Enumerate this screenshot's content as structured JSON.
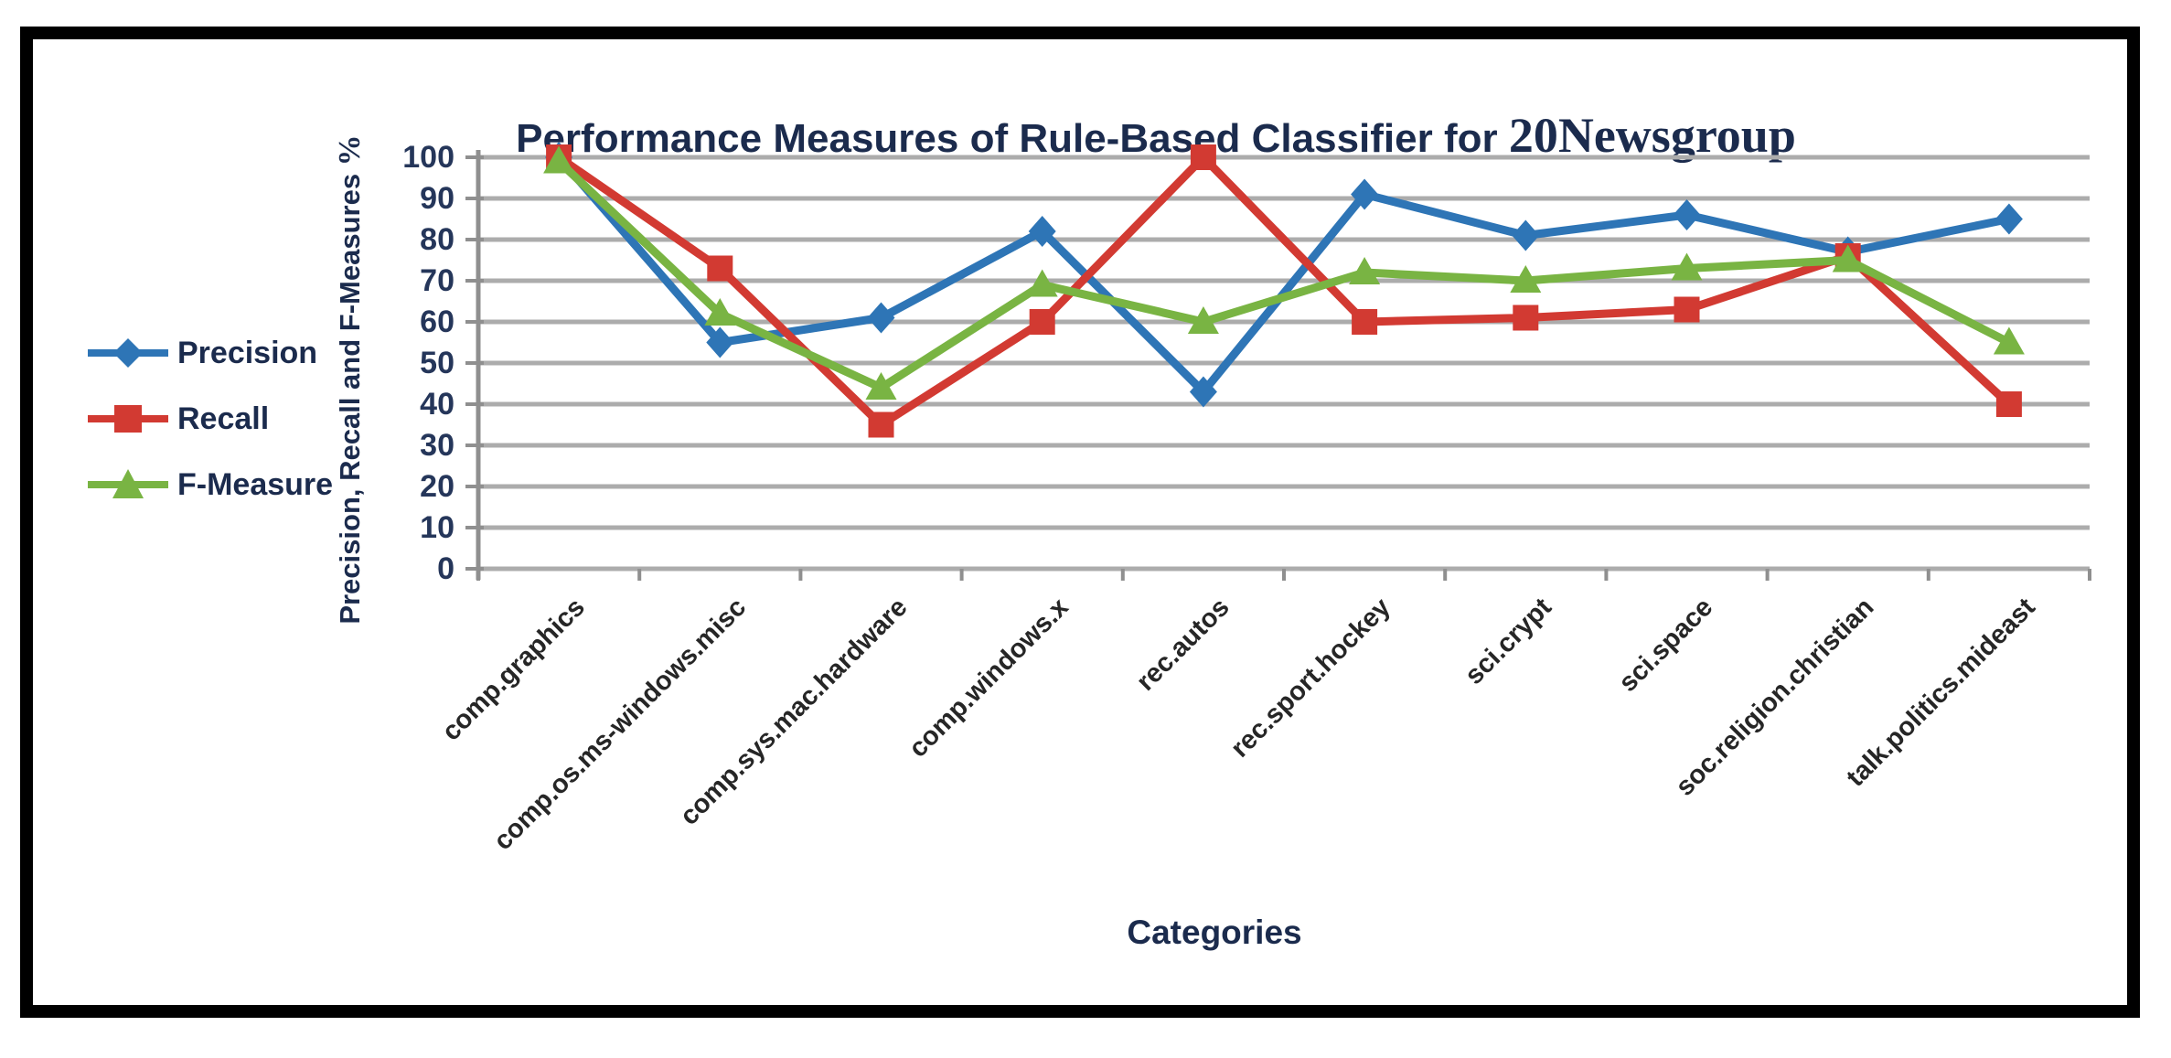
{
  "chart": {
    "title_sans": "Performance Measures of Rule-Based Classifier for ",
    "title_serif": "20Newsgroup",
    "y_axis_title_main": "Precision, Recall and F-Measures ",
    "y_axis_title_suffix": "%",
    "x_axis_title": "Categories",
    "colors": {
      "grid": "#ACACAC",
      "axis": "#8F8F8F",
      "title_text": "#1B2B4D",
      "tick_text": "#25365A",
      "category_text": "#262626"
    }
  },
  "chart_data": {
    "type": "line",
    "title": "Performance Measures of Rule-Based Classifier for 20Newsgroup",
    "xlabel": "Categories",
    "ylabel": "Precision, Recall and F-Measures %",
    "ylim": [
      0,
      100
    ],
    "yticks": [
      0,
      10,
      20,
      30,
      40,
      50,
      60,
      70,
      80,
      90,
      100
    ],
    "grid": "horizontal-only",
    "legend_position": "left",
    "categories": [
      "comp.graphics",
      "comp.os.ms-windows.misc",
      "comp.sys.mac.hardware",
      "comp.windows.x",
      "rec.autos",
      "rec.sport.hockey",
      "sci.crypt",
      "sci.space",
      "soc.religion.christian",
      "talk.politics.mideast"
    ],
    "series": [
      {
        "name": "Precision",
        "marker": "diamond",
        "color": "#2E75B6",
        "values": [
          100,
          55,
          61,
          82,
          43,
          91,
          81,
          86,
          77,
          85
        ]
      },
      {
        "name": "Recall",
        "marker": "square",
        "color": "#D23A32",
        "values": [
          100,
          73,
          35,
          60,
          100,
          60,
          61,
          63,
          76,
          40
        ]
      },
      {
        "name": "F-Measure",
        "marker": "triangle",
        "color": "#79B443",
        "values": [
          99,
          62,
          44,
          69,
          60,
          72,
          70,
          73,
          75,
          55
        ]
      }
    ]
  }
}
